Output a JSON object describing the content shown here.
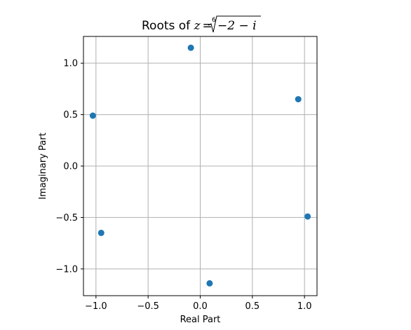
{
  "chart_data": {
    "type": "scatter",
    "title": {
      "prefix": "Roots of ",
      "lhs": "z",
      "equals": "=",
      "root_index": "6",
      "radicand": "−2 − i"
    },
    "xlabel": "Real Part",
    "ylabel": "Imaginary Part",
    "xlim": [
      -1.12,
      1.12
    ],
    "ylim": [
      -1.26,
      1.26
    ],
    "xticks": [
      -1.0,
      -0.5,
      0.0,
      0.5,
      1.0
    ],
    "yticks": [
      -1.0,
      -0.5,
      0.0,
      0.5,
      1.0
    ],
    "xtick_labels": [
      "−1.0",
      "−0.5",
      "0.0",
      "0.5",
      "1.0"
    ],
    "ytick_labels": [
      "−1.0",
      "−0.5",
      "0.0",
      "0.5",
      "1.0"
    ],
    "grid": true,
    "marker_color": "#1f77b4",
    "points": [
      {
        "x": 0.94,
        "y": 0.65
      },
      {
        "x": -0.09,
        "y": 1.15
      },
      {
        "x": -1.03,
        "y": 0.49
      },
      {
        "x": -0.95,
        "y": -0.65
      },
      {
        "x": 0.09,
        "y": -1.14
      },
      {
        "x": 1.03,
        "y": -0.49
      }
    ]
  }
}
